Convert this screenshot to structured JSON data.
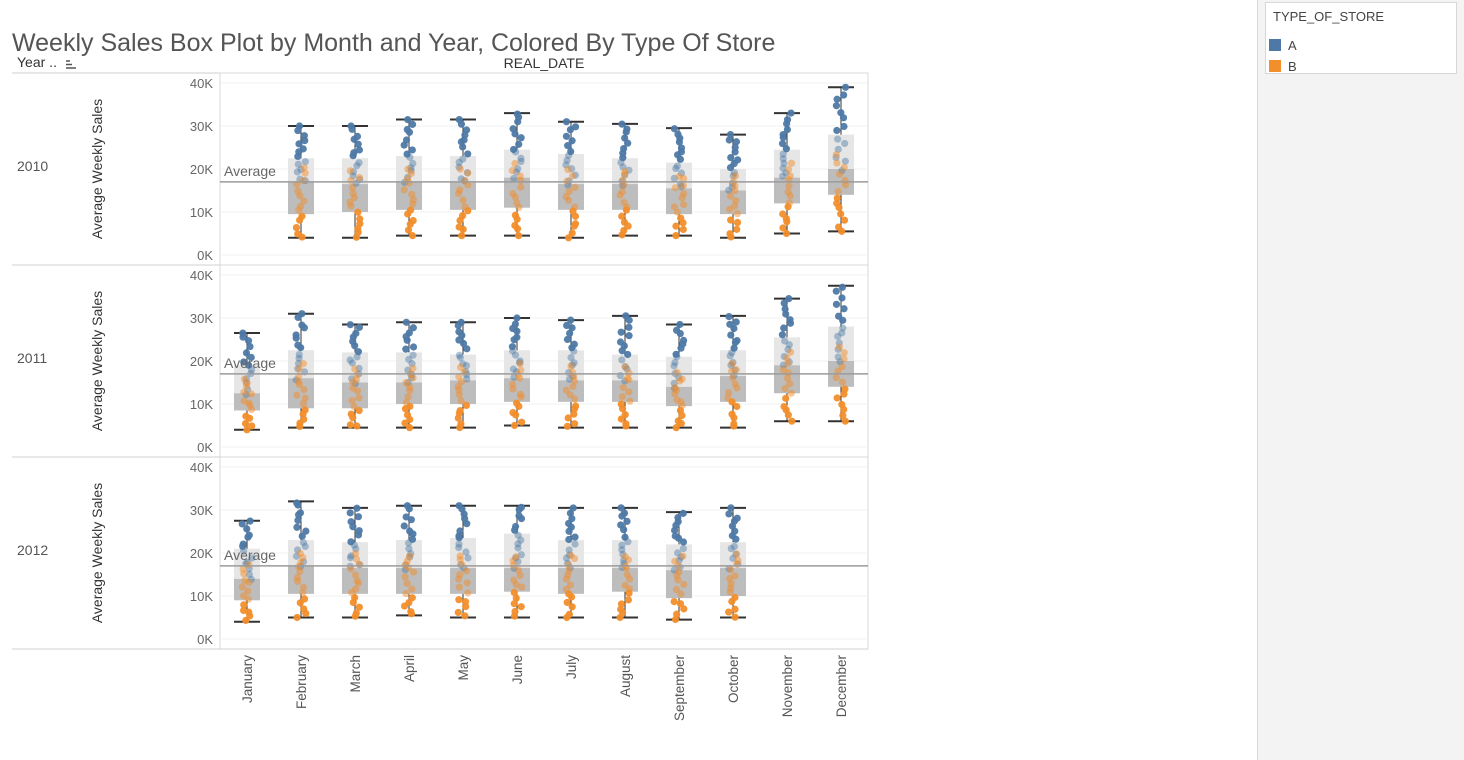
{
  "title": "Weekly Sales Box Plot by Month and Year, Colored By Type Of Store",
  "header": {
    "row_field_label": "Year ..",
    "column_field_label": "REAL_DATE"
  },
  "legend": {
    "title": "TYPE_OF_STORE",
    "items": [
      {
        "label": "A",
        "color": "#4e79a7"
      },
      {
        "label": "B",
        "color": "#f28e2b"
      }
    ]
  },
  "colors": {
    "A": "#4e79a7",
    "B": "#f28e2b",
    "box_upper": "#e6e6e6",
    "box_lower": "#bdbdbd",
    "reference_line": "#9b9b9b",
    "whisker": "#333333"
  },
  "chart_data": {
    "type": "box",
    "x_categories": [
      "January",
      "February",
      "March",
      "April",
      "May",
      "June",
      "July",
      "August",
      "September",
      "October",
      "November",
      "December"
    ],
    "y_label": "Average Weekly Sales",
    "y_ticks": [
      "0K",
      "10K",
      "20K",
      "30K",
      "40K"
    ],
    "ylim": [
      0,
      40000
    ],
    "reference_line": {
      "label": "Average",
      "value": 17000
    },
    "panels": [
      {
        "year": "2010",
        "boxes": [
          null,
          {
            "min": 4000,
            "q1": 9500,
            "median": 17000,
            "q3": 22500,
            "max": 30000
          },
          {
            "min": 4000,
            "q1": 10000,
            "median": 16500,
            "q3": 22500,
            "max": 30000
          },
          {
            "min": 4500,
            "q1": 10500,
            "median": 17000,
            "q3": 23000,
            "max": 31500
          },
          {
            "min": 4500,
            "q1": 10500,
            "median": 17000,
            "q3": 23000,
            "max": 31500
          },
          {
            "min": 4500,
            "q1": 11000,
            "median": 18000,
            "q3": 24500,
            "max": 33000
          },
          {
            "min": 4000,
            "q1": 10500,
            "median": 16500,
            "q3": 23500,
            "max": 31000
          },
          {
            "min": 4500,
            "q1": 10500,
            "median": 16500,
            "q3": 22500,
            "max": 30500
          },
          {
            "min": 4500,
            "q1": 9500,
            "median": 15500,
            "q3": 21500,
            "max": 29500
          },
          {
            "min": 4000,
            "q1": 9500,
            "median": 15000,
            "q3": 20000,
            "max": 28000
          },
          {
            "min": 5000,
            "q1": 12000,
            "median": 18000,
            "q3": 24500,
            "max": 33000
          },
          {
            "min": 5500,
            "q1": 14000,
            "median": 20000,
            "q3": 28000,
            "max": 39000
          }
        ]
      },
      {
        "year": "2011",
        "boxes": [
          {
            "min": 4000,
            "q1": 8500,
            "median": 12500,
            "q3": 19000,
            "max": 26500
          },
          {
            "min": 4500,
            "q1": 9000,
            "median": 16000,
            "q3": 22500,
            "max": 31000
          },
          {
            "min": 4500,
            "q1": 9000,
            "median": 15000,
            "q3": 22000,
            "max": 28500
          },
          {
            "min": 4500,
            "q1": 10000,
            "median": 15000,
            "q3": 22000,
            "max": 29000
          },
          {
            "min": 4500,
            "q1": 10000,
            "median": 15500,
            "q3": 21500,
            "max": 29000
          },
          {
            "min": 5000,
            "q1": 10500,
            "median": 16000,
            "q3": 22500,
            "max": 30000
          },
          {
            "min": 4500,
            "q1": 10500,
            "median": 15500,
            "q3": 22500,
            "max": 29500
          },
          {
            "min": 4500,
            "q1": 10500,
            "median": 15500,
            "q3": 21500,
            "max": 30500
          },
          {
            "min": 4500,
            "q1": 9500,
            "median": 14000,
            "q3": 21000,
            "max": 28500
          },
          {
            "min": 4500,
            "q1": 10500,
            "median": 16500,
            "q3": 22500,
            "max": 30500
          },
          {
            "min": 6000,
            "q1": 12500,
            "median": 19000,
            "q3": 25500,
            "max": 34500
          },
          {
            "min": 6000,
            "q1": 14000,
            "median": 20000,
            "q3": 28000,
            "max": 37500
          }
        ]
      },
      {
        "year": "2012",
        "boxes": [
          {
            "min": 4000,
            "q1": 9000,
            "median": 14000,
            "q3": 21000,
            "max": 27500
          },
          {
            "min": 5000,
            "q1": 10500,
            "median": 17000,
            "q3": 23000,
            "max": 32000
          },
          {
            "min": 5000,
            "q1": 10500,
            "median": 16500,
            "q3": 22500,
            "max": 30500
          },
          {
            "min": 5500,
            "q1": 10500,
            "median": 16500,
            "q3": 23000,
            "max": 31000
          },
          {
            "min": 5000,
            "q1": 10500,
            "median": 16500,
            "q3": 23500,
            "max": 31000
          },
          {
            "min": 5000,
            "q1": 11000,
            "median": 16500,
            "q3": 24500,
            "max": 31000
          },
          {
            "min": 5000,
            "q1": 10500,
            "median": 16500,
            "q3": 23000,
            "max": 30500
          },
          {
            "min": 5000,
            "q1": 11000,
            "median": 16500,
            "q3": 23000,
            "max": 30500
          },
          {
            "min": 4500,
            "q1": 9500,
            "median": 16000,
            "q3": 22000,
            "max": 29500
          },
          {
            "min": 5000,
            "q1": 10000,
            "median": 16500,
            "q3": 22500,
            "max": 30500
          },
          null,
          null
        ]
      }
    ]
  }
}
